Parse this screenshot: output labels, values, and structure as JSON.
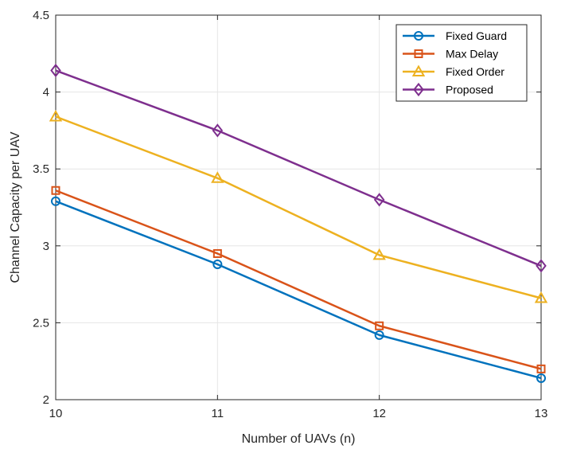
{
  "chart_data": {
    "type": "line",
    "title": "",
    "xlabel": "Number of UAVs (n)",
    "ylabel": "Channel Capacity per UAV",
    "x": [
      10,
      11,
      12,
      13
    ],
    "xlim": [
      10,
      13
    ],
    "ylim": [
      2,
      4.5
    ],
    "xticks": [
      10,
      11,
      12,
      13
    ],
    "xtick_labels": [
      "10",
      "11",
      "12",
      "13"
    ],
    "yticks": [
      2,
      2.5,
      3,
      3.5,
      4,
      4.5
    ],
    "ytick_labels": [
      "2",
      "2.5",
      "3",
      "3.5",
      "4",
      "4.5"
    ],
    "grid": true,
    "legend_position": "top-right",
    "series": [
      {
        "name": "Fixed Guard",
        "color": "#0072BD",
        "marker": "circle",
        "values": [
          3.29,
          2.88,
          2.42,
          2.14
        ]
      },
      {
        "name": "Max Delay",
        "color": "#D95319",
        "marker": "square",
        "values": [
          3.36,
          2.95,
          2.48,
          2.2
        ]
      },
      {
        "name": "Fixed Order",
        "color": "#EDB120",
        "marker": "triangle",
        "values": [
          3.84,
          3.44,
          2.94,
          2.66
        ]
      },
      {
        "name": "Proposed",
        "color": "#7E2F8E",
        "marker": "diamond",
        "values": [
          4.14,
          3.75,
          3.3,
          2.87
        ]
      }
    ]
  }
}
